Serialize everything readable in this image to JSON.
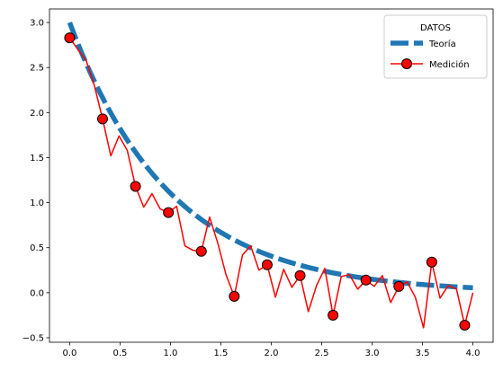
{
  "chart_data": {
    "type": "line",
    "title": "",
    "xlabel": "",
    "ylabel": "",
    "xlim": [
      -0.2,
      4.2
    ],
    "ylim": [
      -0.55,
      3.15
    ],
    "x_ticks": [
      0.0,
      0.5,
      1.0,
      1.5,
      2.0,
      2.5,
      3.0,
      3.5,
      4.0
    ],
    "x_tick_labels": [
      "0.0",
      "0.5",
      "1.0",
      "1.5",
      "2.0",
      "2.5",
      "3.0",
      "3.5",
      "4.0"
    ],
    "y_ticks": [
      -0.5,
      0.0,
      0.5,
      1.0,
      1.5,
      2.0,
      2.5,
      3.0
    ],
    "y_tick_labels": [
      "−0.5",
      "0.0",
      "0.5",
      "1.0",
      "1.5",
      "2.0",
      "2.5",
      "3.0"
    ],
    "grid": false,
    "legend": {
      "title": "DATOS",
      "placement": "top-right"
    },
    "series": [
      {
        "name": "Teoría",
        "style": "dashed",
        "color": "#1f77b4",
        "function": "3*exp(-x)",
        "x_range": [
          0,
          4
        ]
      },
      {
        "name": "Medición",
        "style": "solid",
        "color": "#ff0000",
        "marker": "circle",
        "marker_color": "#ff0000",
        "marker_edge_color": "#000000",
        "marker_every": 4,
        "x": [
          0.0,
          0.0816,
          0.1633,
          0.2449,
          0.3265,
          0.4082,
          0.4898,
          0.5714,
          0.6531,
          0.7347,
          0.8163,
          0.898,
          0.9796,
          1.0612,
          1.1429,
          1.2245,
          1.3061,
          1.3878,
          1.4694,
          1.551,
          1.6327,
          1.7143,
          1.7959,
          1.8776,
          1.9592,
          2.0408,
          2.1224,
          2.2041,
          2.2857,
          2.3673,
          2.449,
          2.5306,
          2.6122,
          2.6939,
          2.7755,
          2.8571,
          2.9388,
          3.0204,
          3.102,
          3.1837,
          3.2653,
          3.3469,
          3.4286,
          3.5102,
          3.5918,
          3.6735,
          3.7551,
          3.8367,
          3.9184,
          4.0
        ],
        "y": [
          2.83,
          2.7,
          2.58,
          2.3,
          1.93,
          1.52,
          1.74,
          1.58,
          1.18,
          0.95,
          1.1,
          0.93,
          0.89,
          0.96,
          0.52,
          0.47,
          0.46,
          0.84,
          0.55,
          0.2,
          -0.04,
          0.42,
          0.52,
          0.25,
          0.31,
          -0.05,
          0.26,
          0.06,
          0.19,
          -0.21,
          0.08,
          0.27,
          -0.25,
          0.18,
          0.2,
          0.04,
          0.14,
          0.07,
          0.19,
          -0.11,
          0.07,
          0.12,
          -0.05,
          -0.39,
          0.34,
          -0.06,
          0.08,
          0.04,
          -0.36,
          0.0
        ]
      }
    ]
  }
}
